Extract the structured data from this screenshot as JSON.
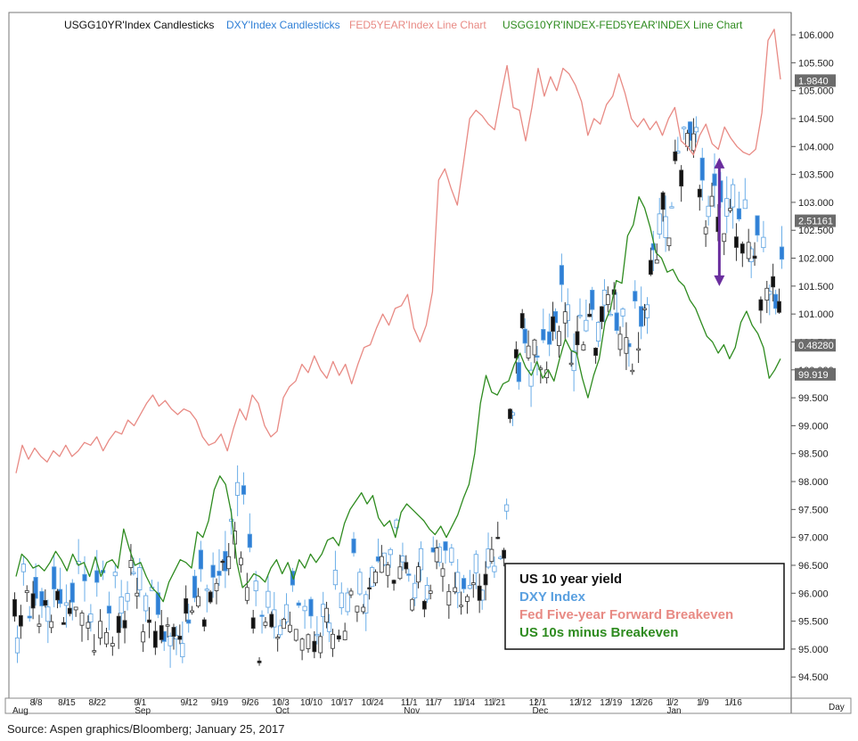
{
  "chart_data": {
    "type": "line",
    "title": "",
    "top_legend": [
      {
        "label": "USGG10YR'Index  Candlesticks",
        "color": "#111111"
      },
      {
        "label": "DXY'Index  Candlesticks",
        "color": "#2f7fd6"
      },
      {
        "label": "FED5YEAR'Index  Line  Chart",
        "color": "#e88a84"
      },
      {
        "label": "USGG10YR'INDEX-FED5YEAR'INDEX  Line  Chart",
        "color": "#2e8b1f"
      }
    ],
    "y_axis": {
      "ticks": [
        "106.000",
        "105.500",
        "105.000",
        "104.500",
        "104.000",
        "103.500",
        "103.000",
        "102.500",
        "102.000",
        "101.500",
        "101.000",
        "100.500",
        "100.000",
        "99.500",
        "99.000",
        "98.500",
        "98.000",
        "97.500",
        "97.000",
        "96.500",
        "96.000",
        "95.500",
        "95.000",
        "94.500"
      ],
      "ylim": [
        94.2,
        106.4
      ],
      "unit_label": "Day"
    },
    "x_axis": {
      "date_labels": [
        "8/8",
        "8/15",
        "8/22",
        "9/1",
        "9/12",
        "9/19",
        "9/26",
        "10/3",
        "10/10",
        "10/17",
        "10/24",
        "11/1",
        "11/7",
        "11/14",
        "11/21",
        "12/1",
        "12/12",
        "12/19",
        "12/26",
        "1/2",
        "1/9",
        "1/16"
      ],
      "month_labels": [
        "Aug",
        "Sep",
        "Oct",
        "Nov",
        "Dec",
        "Jan"
      ],
      "date_label_index": [
        3,
        8,
        13,
        20,
        28,
        33,
        38,
        43,
        48,
        53,
        58,
        64,
        68,
        73,
        78,
        85,
        92,
        97,
        102,
        107,
        112,
        117
      ],
      "month_label_index": [
        0,
        20,
        43,
        64,
        85,
        107
      ],
      "days": 126
    },
    "badges": [
      {
        "label": "1.9840",
        "value": 105.18
      },
      {
        "label": "2.51161",
        "value": 102.67
      },
      {
        "label": "0.48280",
        "value": 100.44
      },
      {
        "label": "99.919",
        "value": 99.92
      }
    ],
    "series": [
      {
        "name": "FED5YEAR'Index",
        "color": "#e88a84",
        "values": [
          98.15,
          98.65,
          98.4,
          98.6,
          98.45,
          98.35,
          98.55,
          98.45,
          98.65,
          98.45,
          98.55,
          98.7,
          98.65,
          98.8,
          98.55,
          98.75,
          98.9,
          98.85,
          99.1,
          99.0,
          99.2,
          99.4,
          99.55,
          99.35,
          99.45,
          99.3,
          99.2,
          99.3,
          99.25,
          99.1,
          98.8,
          98.65,
          98.7,
          98.85,
          98.55,
          98.95,
          99.3,
          99.1,
          99.55,
          99.4,
          99.0,
          98.8,
          98.9,
          99.5,
          99.7,
          99.8,
          100.1,
          99.95,
          100.25,
          100.0,
          99.85,
          100.15,
          99.9,
          100.1,
          99.75,
          100.1,
          100.4,
          100.45,
          100.75,
          101.0,
          100.8,
          101.1,
          101.15,
          101.35,
          100.75,
          100.5,
          100.8,
          101.4,
          103.4,
          103.6,
          103.25,
          102.95,
          103.7,
          104.5,
          104.65,
          104.55,
          104.4,
          104.3,
          104.9,
          105.45,
          104.7,
          104.65,
          104.1,
          104.7,
          105.4,
          104.9,
          105.25,
          105.0,
          105.4,
          105.3,
          105.1,
          104.8,
          104.2,
          104.5,
          104.4,
          104.75,
          104.9,
          105.3,
          104.95,
          104.5,
          104.35,
          104.5,
          104.3,
          104.45,
          104.2,
          104.5,
          104.7,
          104.1,
          104.0,
          103.85,
          104.2,
          104.4,
          104.05,
          103.95,
          104.35,
          104.15,
          104.0,
          103.9,
          103.85,
          103.95,
          104.6,
          105.9,
          106.1,
          105.2
        ],
        "x_start": 0
      },
      {
        "name": "USGG10YR'INDEX-FED5YEAR'INDEX",
        "color": "#2e8b1f",
        "values": [
          96.3,
          96.7,
          96.6,
          96.45,
          96.5,
          96.4,
          96.55,
          96.75,
          96.6,
          96.4,
          96.7,
          96.5,
          96.55,
          96.3,
          96.65,
          96.3,
          96.55,
          96.6,
          96.45,
          97.15,
          96.8,
          96.5,
          96.55,
          96.3,
          96.1,
          96.0,
          95.85,
          96.2,
          96.4,
          96.6,
          96.55,
          96.45,
          97.1,
          97.0,
          97.3,
          97.85,
          98.1,
          97.95,
          97.45,
          96.55,
          96.1,
          96.2,
          96.35,
          96.3,
          96.2,
          96.45,
          96.6,
          96.35,
          96.55,
          96.25,
          96.6,
          96.45,
          96.7,
          96.55,
          96.7,
          96.95,
          97.0,
          96.85,
          97.25,
          97.5,
          97.65,
          97.8,
          97.6,
          97.75,
          97.35,
          97.2,
          97.3,
          97.0,
          97.45,
          97.6,
          97.5,
          97.4,
          97.3,
          97.15,
          97.05,
          97.2,
          97.0,
          97.2,
          97.4,
          97.7,
          97.95,
          98.5,
          99.4,
          99.9,
          99.6,
          99.55,
          99.75,
          99.8,
          100.1,
          100.3,
          100.05,
          99.9,
          100.15,
          99.85,
          100.0,
          99.8,
          100.2,
          100.55,
          100.35,
          100.3,
          99.85,
          99.5,
          99.9,
          100.2,
          100.85,
          101.1,
          101.6,
          101.55,
          102.4,
          102.6,
          103.1,
          102.9,
          102.55,
          102.1,
          102.0,
          101.75,
          101.8,
          101.6,
          101.5,
          101.25,
          101.1,
          100.85,
          100.6,
          100.5,
          100.3,
          100.45,
          100.2,
          100.4,
          100.85,
          101.05,
          100.8,
          100.65,
          100.4,
          99.85,
          100.0,
          100.2
        ],
        "x_start": 0
      }
    ],
    "annotation": {
      "type": "double-arrow",
      "color": "#6a2e9e",
      "from_value": 103.8,
      "to_value": 101.5,
      "x_index": 115
    },
    "legend_box": [
      {
        "label": "US 10 year yield",
        "color": "#111111"
      },
      {
        "label": "DXY Index",
        "color": "#5aa0e0"
      },
      {
        "label": "Fed Five-year Forward Breakeven",
        "color": "#e88a84"
      },
      {
        "label": "US 10s minus Breakeven",
        "color": "#2e8b1f"
      }
    ]
  },
  "source": "Source: Aspen graphics/Bloomberg; January 25, 2017"
}
